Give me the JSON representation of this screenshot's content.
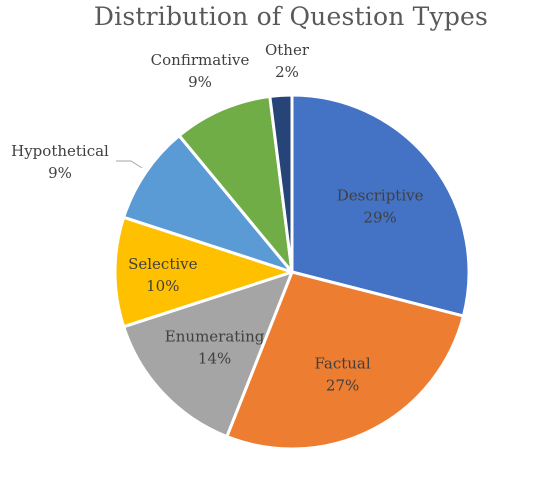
{
  "chart_data": {
    "type": "pie",
    "title": "Distribution of Question Types",
    "slices": [
      {
        "label": "Descriptive",
        "value": 29,
        "pct_label": "29%",
        "color": "#4472C4",
        "text_color": "#404040",
        "label_pos": "inside"
      },
      {
        "label": "Factual",
        "value": 27,
        "pct_label": "27%",
        "color": "#ED7D31",
        "text_color": "#404040",
        "label_pos": "inside"
      },
      {
        "label": "Enumerating",
        "value": 14,
        "pct_label": "14%",
        "color": "#A5A5A5",
        "text_color": "#404040",
        "label_pos": "inside"
      },
      {
        "label": "Selective",
        "value": 10,
        "pct_label": "10%",
        "color": "#FFC000",
        "text_color": "#404040",
        "label_pos": "inside"
      },
      {
        "label": "Hypothetical",
        "value": 9,
        "pct_label": "9%",
        "color": "#5B9BD5",
        "text_color": "#404040",
        "label_pos": "outside"
      },
      {
        "label": "Confirmative",
        "value": 9,
        "pct_label": "9%",
        "color": "#70AD47",
        "text_color": "#404040",
        "label_pos": "outside"
      },
      {
        "label": "Other",
        "value": 2,
        "pct_label": "2%",
        "color": "#264478",
        "text_color": "#404040",
        "label_pos": "outside"
      }
    ],
    "legend": "none"
  }
}
